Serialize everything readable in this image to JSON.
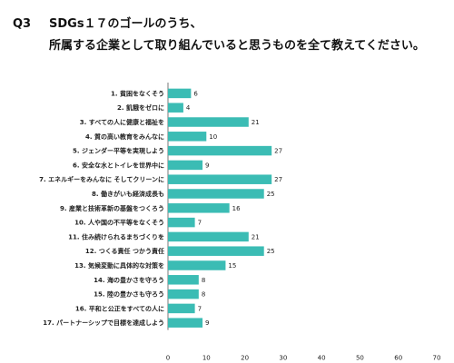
{
  "title": {
    "q": "Q3",
    "line1": "SDGs１７のゴールのうち、",
    "line2": "所属する企業として取り組んでいると思うものを全て教えてください。"
  },
  "chart_data": {
    "type": "bar",
    "orientation": "horizontal",
    "categories": [
      "1.  貧困をなくそう",
      "2.  飢餓をゼロに",
      "3.  すべての人に健康と福祉を",
      "4.  質の高い教育をみんなに",
      "5.  ジェンダー平等を実現しよう",
      "6.  安全な水とトイレを世界中に",
      "7.  エネルギーをみんなに そしてクリーンに",
      "8.  働きがいも経済成長も",
      "9.  産業と技術革新の基盤をつくろう",
      "10.  人や国の不平等をなくそう",
      "11.  住み続けられるまちづくりを",
      "12.  つくる責任 つかう責任",
      "13.  気候変動に具体的な対策を",
      "14.  海の豊かさを守ろう",
      "15.  陸の豊かさも守ろう",
      "16.  平和と公正をすべての人に",
      "17.  パートナーシップで目標を達成しよう"
    ],
    "values": [
      6,
      4,
      21,
      10,
      27,
      9,
      27,
      25,
      16,
      7,
      21,
      25,
      15,
      8,
      8,
      7,
      9
    ],
    "xlim": [
      0,
      70
    ],
    "xticks": [
      0,
      10,
      20,
      30,
      40,
      50,
      60,
      70
    ],
    "bar_color": "#3bbcb4",
    "grid": false
  }
}
